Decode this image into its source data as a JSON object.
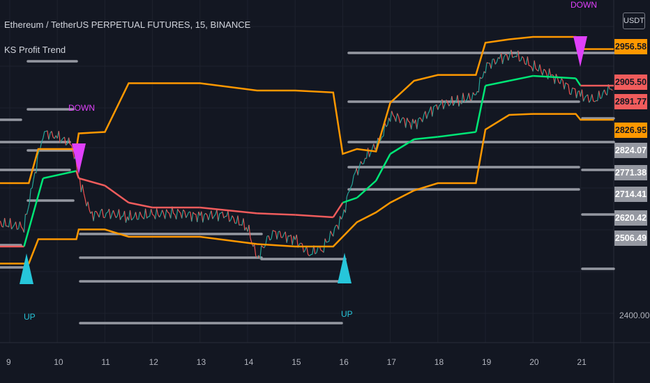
{
  "header": {
    "title": "Ethereum / TetherUS PERPETUAL FUTURES, 15, BINANCE",
    "indicator": "KS Profit Trend",
    "currency": "USDT"
  },
  "axis": {
    "y_ticks": [
      "2400.00"
    ],
    "x_ticks": [
      "9",
      "10",
      "11",
      "12",
      "13",
      "14",
      "15",
      "16",
      "17",
      "18",
      "19",
      "20",
      "21"
    ]
  },
  "price_labels": [
    {
      "text": "2956.58",
      "color": "#ff9800"
    },
    {
      "text": "2905.50",
      "color": "#f05c5c"
    },
    {
      "text": "2891.77",
      "color": "#f05c5c"
    },
    {
      "text": "2826.95",
      "color": "#ff9800"
    },
    {
      "text": "2824.07",
      "color": "#9598a1"
    },
    {
      "text": "2771.38",
      "color": "#9598a1"
    },
    {
      "text": "2714.41",
      "color": "#9598a1"
    },
    {
      "text": "2620.42",
      "color": "#9598a1"
    },
    {
      "text": "2506.49",
      "color": "#9598a1"
    }
  ],
  "signals": [
    {
      "type": "up",
      "text": "UP",
      "color": "#26c6da"
    },
    {
      "type": "down",
      "text": "DOWN",
      "color": "#e040fb"
    },
    {
      "type": "up",
      "text": "UP",
      "color": "#26c6da"
    },
    {
      "type": "down",
      "text": "DOWN",
      "color": "#e040fb"
    }
  ],
  "colors": {
    "background": "#131722",
    "upper_band": "#ff9800",
    "lower_band": "#ff9800",
    "trend_up": "#00e676",
    "trend_down": "#f05c5c",
    "levels": "#9598a1",
    "candle_up": "#26a69a",
    "candle_down": "#ef5350"
  },
  "chart_data": {
    "type": "line",
    "title": "Ethereum / TetherUS PERPETUAL FUTURES, 15, BINANCE",
    "x_ticks": [
      "9",
      "10",
      "11",
      "12",
      "13",
      "14",
      "15",
      "16",
      "17",
      "18",
      "19",
      "20",
      "21"
    ],
    "ylim": [
      2380,
      3010
    ],
    "series": [
      {
        "name": "price",
        "x": [
          8.6,
          9.3,
          9.5,
          9.7,
          10.0,
          10.3,
          10.5,
          10.7,
          11.0,
          11.5,
          12.0,
          12.5,
          13.0,
          13.5,
          14.0,
          14.2,
          14.5,
          15.0,
          15.3,
          15.6,
          16.0,
          16.2,
          16.5,
          16.8,
          17.0,
          17.5,
          18.0,
          18.5,
          18.8,
          19.0,
          19.3,
          19.6,
          20.0,
          20.4,
          20.8,
          21.0,
          21.3,
          21.7
        ],
        "y": [
          2610,
          2600,
          2695,
          2795,
          2785,
          2770,
          2685,
          2625,
          2630,
          2620,
          2625,
          2630,
          2622,
          2626,
          2600,
          2535,
          2590,
          2575,
          2545,
          2560,
          2620,
          2700,
          2745,
          2780,
          2830,
          2810,
          2850,
          2860,
          2870,
          2930,
          2945,
          2955,
          2930,
          2910,
          2885,
          2870,
          2860,
          2890
        ]
      },
      {
        "x": [
          8.6,
          9.4,
          9.6,
          10.4,
          10.45,
          11.0,
          11.5,
          12.0,
          13.0,
          14.2,
          15.0,
          15.8,
          16.0,
          16.3,
          16.7,
          17.0,
          17.5,
          18.0,
          18.8,
          19.0,
          19.5,
          20.0,
          20.9,
          21.0,
          21.7
        ],
        "y": [
          2690,
          2690,
          2760,
          2760,
          2792,
          2795,
          2895,
          2895,
          2895,
          2880,
          2880,
          2876,
          2750,
          2760,
          2755,
          2855,
          2900,
          2912,
          2912,
          2978,
          2985,
          2990,
          2990,
          2965,
          2965
        ]
      },
      {
        "x": [
          8.6,
          9.3,
          9.5,
          9.7,
          10.4,
          10.45,
          11.0,
          11.5,
          12.0,
          13.0,
          14.2,
          15.0,
          15.8,
          16.0,
          16.3,
          16.7,
          17.0,
          17.5,
          18.0,
          18.8,
          19.0,
          19.5,
          20.0,
          20.9,
          21.0,
          21.7
        ],
        "y": [
          2560,
          2560,
          2630,
          2700,
          2715,
          2700,
          2685,
          2650,
          2640,
          2640,
          2628,
          2625,
          2620,
          2650,
          2660,
          2695,
          2750,
          2780,
          2785,
          2795,
          2890,
          2900,
          2910,
          2905,
          2890,
          2890
        ]
      },
      {
        "x": [
          8.6,
          9.4,
          9.6,
          10.4,
          10.45,
          11.0,
          11.5,
          12.0,
          13.0,
          14.2,
          15.0,
          15.8,
          16.0,
          16.3,
          16.7,
          17.0,
          17.5,
          18.0,
          18.8,
          19.0,
          19.5,
          20.0,
          20.9,
          21.0,
          21.7
        ],
        "y": [
          2525,
          2525,
          2575,
          2575,
          2595,
          2595,
          2580,
          2580,
          2580,
          2565,
          2560,
          2560,
          2580,
          2610,
          2630,
          2650,
          2675,
          2690,
          2690,
          2800,
          2830,
          2832,
          2832,
          2820,
          2820
        ]
      }
    ]
  }
}
